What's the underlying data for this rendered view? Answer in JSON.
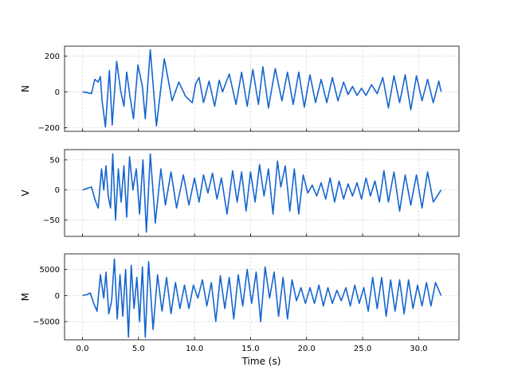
{
  "chart_data": {
    "type": "line",
    "xlabel": "Time (s)",
    "xlim": [
      -1.6,
      33.6
    ],
    "x_ticks": [
      0,
      5,
      10,
      15,
      20,
      25,
      30
    ],
    "x_tick_labels": [
      "0.0",
      "5.0",
      "10.0",
      "15.0",
      "20.0",
      "25.0",
      "30.0"
    ],
    "grid": true,
    "line_color": "#1565d0",
    "grid_color": "#c8c8c8",
    "panels": [
      {
        "id": "N",
        "ylabel": "N",
        "ylim": [
          -220,
          255
        ],
        "y_ticks": [
          -200,
          0,
          200
        ],
        "y_tick_labels": [
          "−200",
          "0",
          "200"
        ],
        "series": [
          {
            "x": [
              0,
              0.5,
              0.8,
              1.1,
              1.4,
              1.6,
              1.75,
              2.05,
              2.4,
              2.65,
              3.05,
              3.4,
              3.7,
              3.95,
              4.2,
              4.55,
              4.95,
              5.35,
              5.6,
              6.05,
              6.6,
              7.3,
              8.0,
              8.6,
              9.2,
              9.8,
              10.1,
              10.4,
              10.8,
              11.3,
              11.8,
              12.2,
              12.5,
              13.1,
              13.7,
              14.2,
              14.7,
              15.2,
              15.7,
              16.1,
              16.6,
              17.2,
              17.8,
              18.3,
              18.8,
              19.3,
              19.8,
              20.3,
              20.8,
              21.3,
              21.8,
              22.3,
              22.8,
              23.3,
              23.7,
              24.1,
              24.5,
              24.9,
              25.3,
              25.8,
              26.3,
              26.8,
              27.3,
              27.8,
              28.3,
              28.8,
              29.3,
              29.8,
              30.3,
              30.8,
              31.3,
              31.8,
              32.0
            ],
            "y": [
              0,
              -5,
              -10,
              70,
              55,
              85,
              -50,
              -195,
              120,
              -185,
              170,
              10,
              -80,
              110,
              -10,
              -150,
              150,
              30,
              -150,
              235,
              -190,
              185,
              -50,
              55,
              -25,
              -60,
              45,
              80,
              -60,
              60,
              -80,
              65,
              0,
              100,
              -70,
              110,
              -80,
              125,
              -70,
              140,
              -90,
              130,
              -50,
              110,
              -70,
              110,
              -85,
              95,
              -60,
              70,
              -60,
              80,
              -50,
              55,
              -15,
              30,
              -20,
              20,
              -20,
              40,
              -10,
              80,
              -90,
              90,
              -60,
              95,
              -100,
              90,
              -50,
              70,
              -60,
              60,
              0
            ]
          }
        ]
      },
      {
        "id": "V",
        "ylabel": "V",
        "ylim": [
          -77,
          67
        ],
        "y_ticks": [
          -50,
          0,
          50
        ],
        "y_tick_labels": [
          "−50",
          "0",
          "50"
        ],
        "series": [
          {
            "x": [
              0,
              0.5,
              0.8,
              1.1,
              1.4,
              1.7,
              1.9,
              2.1,
              2.3,
              2.5,
              2.7,
              2.95,
              3.2,
              3.45,
              3.7,
              3.95,
              4.2,
              4.5,
              4.8,
              5.1,
              5.4,
              5.7,
              6.05,
              6.5,
              7.0,
              7.4,
              7.9,
              8.4,
              9.0,
              9.5,
              10.0,
              10.4,
              10.8,
              11.2,
              11.6,
              12.0,
              12.4,
              12.9,
              13.4,
              13.8,
              14.2,
              14.6,
              15.0,
              15.4,
              15.8,
              16.2,
              16.6,
              17.0,
              17.4,
              17.7,
              18.1,
              18.5,
              18.9,
              19.3,
              19.7,
              20.1,
              20.5,
              20.9,
              21.3,
              21.7,
              22.1,
              22.5,
              22.9,
              23.3,
              23.7,
              24.1,
              24.5,
              24.9,
              25.3,
              25.7,
              26.1,
              26.5,
              26.9,
              27.3,
              27.8,
              28.3,
              28.8,
              29.3,
              29.8,
              30.3,
              30.8,
              31.3,
              32.0
            ],
            "y": [
              0,
              3,
              5,
              -15,
              -30,
              35,
              0,
              40,
              -10,
              -30,
              60,
              -50,
              35,
              -20,
              40,
              -45,
              55,
              0,
              35,
              -40,
              50,
              -70,
              60,
              -55,
              35,
              -25,
              30,
              -30,
              25,
              -25,
              20,
              -20,
              25,
              -5,
              28,
              -15,
              20,
              -40,
              32,
              -20,
              30,
              -35,
              30,
              -20,
              42,
              -10,
              35,
              -40,
              48,
              5,
              40,
              -35,
              35,
              -40,
              25,
              -5,
              8,
              -10,
              12,
              -15,
              20,
              -20,
              15,
              -15,
              10,
              -10,
              12,
              -15,
              20,
              -10,
              15,
              -20,
              32,
              -20,
              30,
              -35,
              25,
              -25,
              25,
              -30,
              30,
              -20,
              0
            ]
          }
        ]
      },
      {
        "id": "M",
        "ylabel": "M",
        "ylim": [
          -8500,
          8000
        ],
        "y_ticks": [
          -5000,
          0,
          5000
        ],
        "y_tick_labels": [
          "−5000",
          "0",
          "5000"
        ],
        "series": [
          {
            "x": [
              0,
              0.4,
              0.7,
              1.0,
              1.3,
              1.6,
              1.9,
              2.1,
              2.35,
              2.6,
              2.85,
              3.1,
              3.35,
              3.6,
              3.85,
              4.1,
              4.35,
              4.6,
              4.85,
              5.1,
              5.35,
              5.6,
              5.9,
              6.3,
              6.7,
              7.1,
              7.5,
              7.9,
              8.3,
              8.7,
              9.1,
              9.5,
              9.9,
              10.3,
              10.7,
              11.1,
              11.5,
              11.9,
              12.3,
              12.7,
              13.1,
              13.5,
              13.9,
              14.3,
              14.7,
              15.1,
              15.5,
              15.9,
              16.3,
              16.7,
              17.1,
              17.5,
              17.9,
              18.3,
              18.7,
              19.1,
              19.5,
              19.9,
              20.3,
              20.7,
              21.1,
              21.5,
              21.9,
              22.3,
              22.7,
              23.1,
              23.5,
              23.9,
              24.3,
              24.7,
              25.1,
              25.5,
              25.9,
              26.3,
              26.7,
              27.1,
              27.5,
              27.9,
              28.3,
              28.7,
              29.1,
              29.5,
              29.9,
              30.3,
              30.7,
              31.1,
              31.5,
              32.0
            ],
            "y": [
              0,
              200,
              500,
              -1500,
              -3000,
              4000,
              -500,
              4500,
              -3500,
              -1000,
              7000,
              -4500,
              4000,
              -4000,
              5000,
              -8000,
              5800,
              -2500,
              3500,
              -5000,
              5500,
              -8000,
              6500,
              -6500,
              4000,
              -3000,
              3500,
              -3500,
              2500,
              -2500,
              2000,
              -2500,
              2000,
              -500,
              3000,
              -2000,
              2500,
              -5000,
              3800,
              -2500,
              3500,
              -4500,
              4000,
              -2000,
              5000,
              -1500,
              4500,
              -5000,
              5500,
              -500,
              4500,
              -4000,
              3500,
              -4500,
              3000,
              -1000,
              1500,
              -1500,
              1500,
              -1500,
              2000,
              -2000,
              1500,
              -1500,
              1000,
              -1000,
              1500,
              -2000,
              2000,
              -1500,
              1500,
              -3000,
              3500,
              -2500,
              3500,
              -4000,
              3000,
              -3000,
              3000,
              -3500,
              3000,
              -2500,
              2000,
              -2000,
              2500,
              -2000,
              2500,
              0
            ]
          }
        ]
      }
    ]
  }
}
